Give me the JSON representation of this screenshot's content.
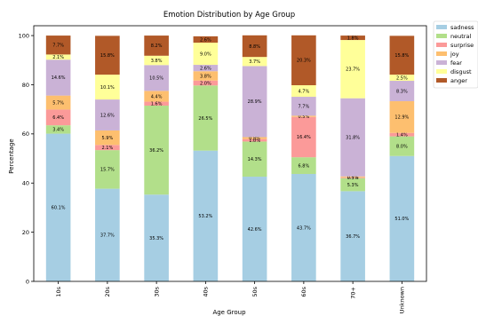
{
  "chart_data": {
    "type": "bar",
    "stacked": true,
    "title": "Emotion Distribution by Age Group",
    "xlabel": "Age Group",
    "ylabel": "Percentage",
    "ylim": [
      0,
      104
    ],
    "yticks": [
      0,
      20,
      40,
      60,
      80,
      100
    ],
    "grid": false,
    "legend_position": "top-right, outside plot",
    "categories": [
      "10s",
      "20s",
      "30s",
      "40s",
      "50s",
      "60s",
      "70+",
      "Unknown"
    ],
    "series": [
      {
        "name": "sadness",
        "color": "#a6cee3",
        "values": [
          60.1,
          37.7,
          35.3,
          53.2,
          42.6,
          43.7,
          36.7,
          51.0
        ]
      },
      {
        "name": "neutral",
        "color": "#b2df8a",
        "values": [
          3.4,
          15.7,
          36.2,
          26.5,
          14.3,
          6.8,
          5.3,
          8.0
        ]
      },
      {
        "name": "surprise",
        "color": "#fb9a99",
        "values": [
          6.4,
          2.1,
          1.6,
          2.0,
          1.0,
          16.4,
          0.3,
          1.4
        ]
      },
      {
        "name": "joy",
        "color": "#fdbf6f",
        "values": [
          5.7,
          5.9,
          4.4,
          3.8,
          0.8,
          0.5,
          0.4,
          12.9
        ]
      },
      {
        "name": "fear",
        "color": "#cab2d6",
        "values": [
          14.6,
          12.6,
          10.5,
          2.6,
          28.9,
          7.7,
          31.8,
          8.3
        ]
      },
      {
        "name": "disgust",
        "color": "#ffff99",
        "values": [
          2.1,
          10.1,
          3.8,
          9.0,
          3.7,
          4.7,
          23.7,
          2.5
        ]
      },
      {
        "name": "anger",
        "color": "#b15928",
        "values": [
          7.7,
          15.8,
          8.2,
          2.6,
          8.8,
          20.3,
          1.8,
          15.8
        ]
      }
    ],
    "data_label_suffix": "%"
  }
}
